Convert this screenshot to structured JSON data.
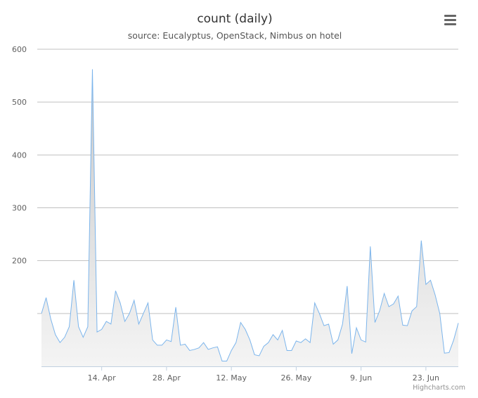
{
  "colors": {
    "line": "#7cb5ec",
    "grid": "#c0c0c0",
    "axis": "#c0d0e0",
    "area_top": "#c8c8c8",
    "area_bottom": "#f4f4f4"
  },
  "chart": {
    "menu_icon": "hamburger-menu-icon",
    "credits": "Highcharts.com"
  },
  "chart_data": {
    "type": "area",
    "title": "count (daily)",
    "subtitle": "source: Eucalyptus, OpenStack, Nimbus on hotel",
    "xlabel": "",
    "ylabel": "",
    "ylim": [
      0,
      600
    ],
    "y_ticks": [
      200,
      300,
      400,
      500,
      600
    ],
    "x_ticks": [
      "14. Apr",
      "28. Apr",
      "12. May",
      "26. May",
      "9. Jun",
      "23. Jun"
    ],
    "grid": true,
    "legend": "none",
    "x_start": "2014-04-01",
    "x_interval": "1 day",
    "values": [
      100,
      130,
      90,
      60,
      45,
      55,
      75,
      163,
      75,
      55,
      75,
      562,
      65,
      70,
      85,
      80,
      143,
      120,
      85,
      100,
      125,
      80,
      100,
      120,
      50,
      40,
      40,
      50,
      47,
      112,
      40,
      42,
      30,
      32,
      35,
      45,
      32,
      35,
      37,
      10,
      10,
      30,
      45,
      83,
      70,
      50,
      22,
      20,
      38,
      45,
      60,
      50,
      68,
      30,
      30,
      48,
      45,
      52,
      45,
      120,
      100,
      77,
      80,
      42,
      50,
      80,
      152,
      24,
      73,
      50,
      46,
      227,
      83,
      105,
      138,
      113,
      118,
      133,
      78,
      77,
      105,
      113,
      238,
      155,
      163,
      135,
      100,
      25,
      26,
      50,
      82
    ]
  }
}
